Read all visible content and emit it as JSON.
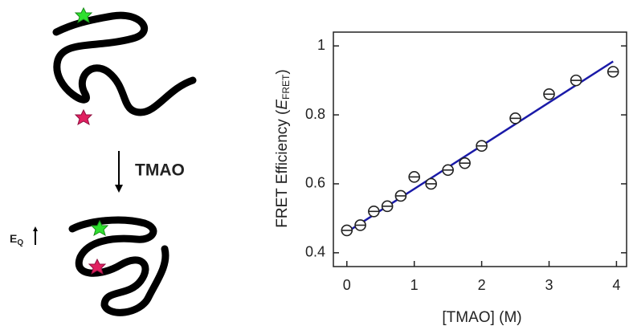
{
  "chart_data": {
    "type": "scatter",
    "xlabel": "[TMAO] (M)",
    "ylabel": {
      "lead": "FRET Efficiency (",
      "symbol": "E",
      "sub": "FRET",
      "tail": ")"
    },
    "x": [
      0,
      0.2,
      0.4,
      0.6,
      0.8,
      1.0,
      1.25,
      1.5,
      1.75,
      2.0,
      2.5,
      3.0,
      3.4,
      3.95
    ],
    "values": [
      0.465,
      0.48,
      0.52,
      0.535,
      0.565,
      0.62,
      0.6,
      0.64,
      0.66,
      0.71,
      0.79,
      0.86,
      0.9,
      0.925
    ],
    "color": "#222222",
    "fit": {
      "x": [
        0,
        3.95
      ],
      "values": [
        0.46,
        0.955
      ],
      "color": "#1a1aa8"
    },
    "xlim": [
      -0.2,
      4.15
    ],
    "xticks": [
      0,
      1,
      2,
      3,
      4
    ],
    "ylim": [
      0.36,
      1.04
    ],
    "yticks": [
      0.4,
      0.6,
      0.8,
      1.0
    ]
  },
  "diagram": {
    "arrow_label": "TMAO",
    "side_label": "E",
    "side_label_sub": "Q"
  }
}
